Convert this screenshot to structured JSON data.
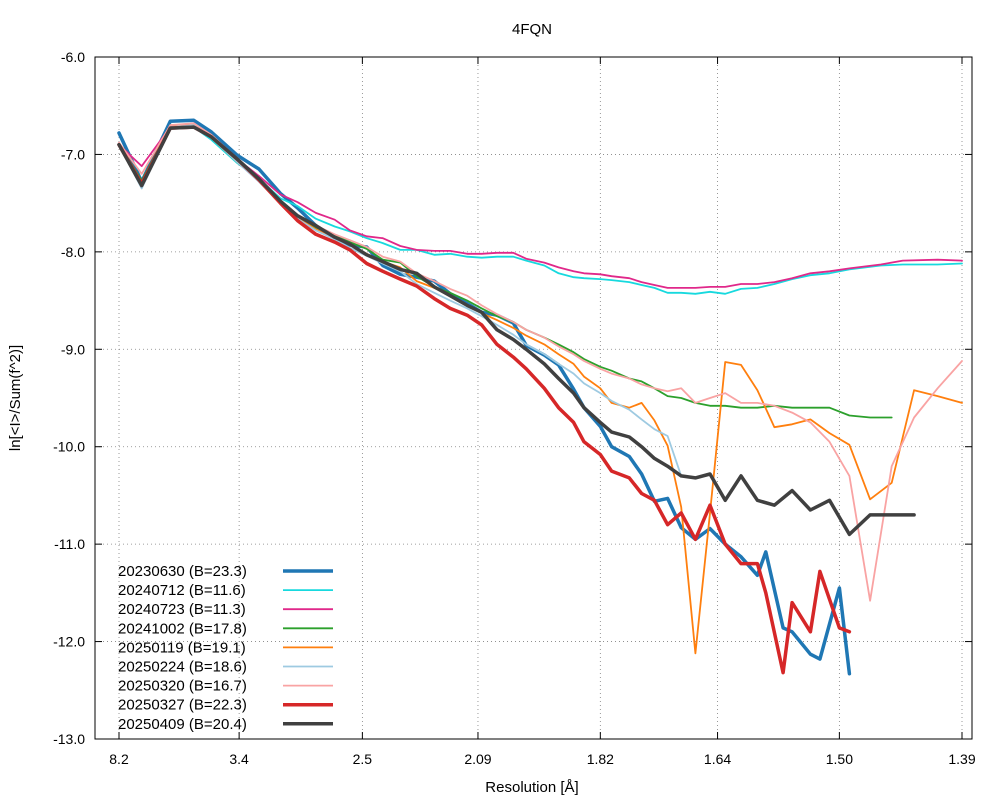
{
  "chart_data": {
    "type": "line",
    "title": "4FQN",
    "xlabel": "Resolution [Å]",
    "ylabel": "ln[<I>/Sum(f^2)]",
    "x_scale": "1/d^2",
    "xticks": [
      8.2,
      3.4,
      2.5,
      2.09,
      1.82,
      1.64,
      1.5,
      1.39
    ],
    "xtick_labels": [
      "8.2",
      "3.4",
      "2.5",
      "2.09",
      "1.82",
      "1.64",
      "1.50",
      "1.39"
    ],
    "xlim": [
      8.2,
      1.39
    ],
    "ylim": [
      -13.0,
      -6.0
    ],
    "yticks": [
      -6.0,
      -7.0,
      -8.0,
      -9.0,
      -10.0,
      -11.0,
      -12.0,
      -13.0
    ],
    "ytick_labels": [
      "-6.0",
      "-7.0",
      "-8.0",
      "-9.0",
      "-10.0",
      "-11.0",
      "-12.0",
      "-13.0"
    ],
    "grid": true,
    "legend_position": "bottom-left",
    "series": [
      {
        "name": "20230630 (B=23.3)",
        "color": "#1f77b4",
        "width": 3.5,
        "x": [
          8.2,
          5.93,
          4.69,
          4.1,
          3.78,
          3.42,
          3.19,
          3.0,
          2.87,
          2.75,
          2.64,
          2.56,
          2.48,
          2.41,
          2.34,
          2.28,
          2.22,
          2.17,
          2.12,
          2.08,
          2.04,
          2.0,
          1.97,
          1.93,
          1.9,
          1.87,
          1.85,
          1.82,
          1.8,
          1.77,
          1.75,
          1.73,
          1.71,
          1.69,
          1.67,
          1.65,
          1.63,
          1.61,
          1.59,
          1.58,
          1.56,
          1.55,
          1.53,
          1.52,
          1.5,
          1.49
        ],
        "y": [
          -6.78,
          -7.28,
          -6.66,
          -6.65,
          -6.77,
          -7.01,
          -7.15,
          -7.4,
          -7.55,
          -7.73,
          -7.86,
          -7.93,
          -7.95,
          -8.14,
          -8.23,
          -8.26,
          -8.3,
          -8.43,
          -8.53,
          -8.62,
          -8.65,
          -8.73,
          -8.96,
          -9.06,
          -9.16,
          -9.41,
          -9.6,
          -9.79,
          -10.0,
          -10.1,
          -10.28,
          -10.56,
          -10.53,
          -10.83,
          -10.95,
          -10.84,
          -11.0,
          -11.13,
          -11.32,
          -11.08,
          -11.86,
          -11.9,
          -12.13,
          -12.18,
          -11.45,
          -12.33
        ]
      },
      {
        "name": "20240712 (B=11.6)",
        "color": "#17d9de",
        "width": 1.8,
        "x": [
          8.2,
          5.93,
          4.69,
          4.1,
          3.78,
          3.42,
          3.19,
          3.0,
          2.87,
          2.75,
          2.64,
          2.56,
          2.48,
          2.41,
          2.34,
          2.28,
          2.22,
          2.17,
          2.12,
          2.08,
          2.04,
          2.0,
          1.97,
          1.93,
          1.9,
          1.87,
          1.85,
          1.82,
          1.8,
          1.77,
          1.75,
          1.73,
          1.71,
          1.69,
          1.67,
          1.65,
          1.63,
          1.61,
          1.59,
          1.57,
          1.55,
          1.53,
          1.51,
          1.49,
          1.46,
          1.44,
          1.41,
          1.39
        ],
        "y": [
          -6.89,
          -7.33,
          -6.71,
          -6.72,
          -6.85,
          -7.09,
          -7.25,
          -7.45,
          -7.53,
          -7.66,
          -7.74,
          -7.79,
          -7.86,
          -7.91,
          -7.98,
          -7.98,
          -8.03,
          -8.02,
          -8.05,
          -8.06,
          -8.05,
          -8.05,
          -8.09,
          -8.14,
          -8.22,
          -8.26,
          -8.27,
          -8.28,
          -8.29,
          -8.31,
          -8.34,
          -8.37,
          -8.42,
          -8.42,
          -8.43,
          -8.41,
          -8.43,
          -8.38,
          -8.37,
          -8.33,
          -8.28,
          -8.24,
          -8.22,
          -8.18,
          -8.14,
          -8.13,
          -8.13,
          -8.12
        ]
      },
      {
        "name": "20240723 (B=11.3)",
        "color": "#e0288a",
        "width": 1.8,
        "x": [
          8.2,
          5.93,
          4.69,
          4.1,
          3.78,
          3.42,
          3.19,
          3.0,
          2.87,
          2.75,
          2.64,
          2.56,
          2.48,
          2.41,
          2.34,
          2.28,
          2.22,
          2.17,
          2.12,
          2.08,
          2.04,
          2.0,
          1.97,
          1.93,
          1.9,
          1.87,
          1.85,
          1.82,
          1.8,
          1.77,
          1.75,
          1.73,
          1.71,
          1.69,
          1.67,
          1.65,
          1.63,
          1.61,
          1.59,
          1.57,
          1.55,
          1.53,
          1.51,
          1.49,
          1.46,
          1.44,
          1.41,
          1.39
        ],
        "y": [
          -6.9,
          -7.12,
          -6.72,
          -6.68,
          -6.83,
          -7.05,
          -7.22,
          -7.41,
          -7.49,
          -7.6,
          -7.67,
          -7.78,
          -7.84,
          -7.86,
          -7.94,
          -7.98,
          -7.99,
          -7.99,
          -8.02,
          -8.02,
          -8.01,
          -8.01,
          -8.07,
          -8.11,
          -8.16,
          -8.2,
          -8.22,
          -8.23,
          -8.25,
          -8.27,
          -8.31,
          -8.34,
          -8.37,
          -8.37,
          -8.37,
          -8.36,
          -8.36,
          -8.33,
          -8.33,
          -8.31,
          -8.27,
          -8.22,
          -8.2,
          -8.17,
          -8.13,
          -8.09,
          -8.08,
          -8.09
        ]
      },
      {
        "name": "20241002 (B=17.8)",
        "color": "#2ca02c",
        "width": 1.8,
        "x": [
          8.2,
          5.93,
          4.69,
          4.1,
          3.78,
          3.42,
          3.19,
          3.0,
          2.87,
          2.75,
          2.64,
          2.56,
          2.48,
          2.41,
          2.34,
          2.28,
          2.22,
          2.17,
          2.12,
          2.08,
          2.04,
          2.0,
          1.97,
          1.93,
          1.9,
          1.87,
          1.85,
          1.82,
          1.8,
          1.77,
          1.75,
          1.73,
          1.71,
          1.69,
          1.67,
          1.65,
          1.63,
          1.61,
          1.59,
          1.57,
          1.55,
          1.53,
          1.51,
          1.49,
          1.47,
          1.45
        ],
        "y": [
          -6.89,
          -7.27,
          -6.71,
          -6.69,
          -6.82,
          -7.08,
          -7.27,
          -7.48,
          -7.63,
          -7.75,
          -7.83,
          -7.9,
          -7.97,
          -8.08,
          -8.11,
          -8.25,
          -8.36,
          -8.42,
          -8.5,
          -8.58,
          -8.66,
          -8.72,
          -8.8,
          -8.88,
          -8.95,
          -9.03,
          -9.1,
          -9.18,
          -9.22,
          -9.3,
          -9.33,
          -9.4,
          -9.48,
          -9.5,
          -9.55,
          -9.58,
          -9.58,
          -9.6,
          -9.6,
          -9.58,
          -9.6,
          -9.6,
          -9.6,
          -9.68,
          -9.7,
          -9.7
        ]
      },
      {
        "name": "20250119 (B=19.1)",
        "color": "#ff7f0e",
        "width": 1.8,
        "x": [
          8.2,
          5.93,
          4.69,
          4.1,
          3.78,
          3.42,
          3.19,
          3.0,
          2.87,
          2.75,
          2.64,
          2.56,
          2.48,
          2.41,
          2.34,
          2.28,
          2.22,
          2.17,
          2.12,
          2.08,
          2.04,
          2.0,
          1.97,
          1.93,
          1.9,
          1.87,
          1.85,
          1.82,
          1.8,
          1.77,
          1.75,
          1.73,
          1.71,
          1.69,
          1.67,
          1.65,
          1.63,
          1.61,
          1.59,
          1.57,
          1.55,
          1.53,
          1.51,
          1.49,
          1.47,
          1.45,
          1.43,
          1.41,
          1.39
        ],
        "y": [
          -6.9,
          -7.3,
          -6.7,
          -6.7,
          -6.83,
          -7.08,
          -7.27,
          -7.5,
          -7.65,
          -7.77,
          -7.85,
          -7.93,
          -8.02,
          -8.1,
          -8.16,
          -8.3,
          -8.37,
          -8.45,
          -8.55,
          -8.63,
          -8.7,
          -8.78,
          -8.86,
          -8.95,
          -9.05,
          -9.15,
          -9.28,
          -9.4,
          -9.55,
          -9.6,
          -9.55,
          -9.73,
          -9.99,
          -10.62,
          -12.12,
          -10.68,
          -9.13,
          -9.16,
          -9.42,
          -9.8,
          -9.77,
          -9.72,
          -9.86,
          -9.98,
          -10.54,
          -10.37,
          -9.42,
          -9.48,
          -9.55
        ]
      },
      {
        "name": "20250224 (B=18.6)",
        "color": "#9ecae1",
        "width": 1.8,
        "x": [
          8.2,
          5.93,
          4.69,
          4.1,
          3.78,
          3.42,
          3.19,
          3.0,
          2.87,
          2.75,
          2.64,
          2.56,
          2.48,
          2.41,
          2.34,
          2.28,
          2.22,
          2.17,
          2.12,
          2.08,
          2.04,
          2.0,
          1.97,
          1.93,
          1.9,
          1.87,
          1.85,
          1.82,
          1.8,
          1.77,
          1.75,
          1.73,
          1.71,
          1.69
        ],
        "y": [
          -6.9,
          -7.35,
          -6.72,
          -6.7,
          -6.83,
          -7.08,
          -7.28,
          -7.5,
          -7.66,
          -7.78,
          -7.87,
          -7.96,
          -8.04,
          -8.12,
          -8.2,
          -8.33,
          -8.42,
          -8.5,
          -8.58,
          -8.66,
          -8.75,
          -8.85,
          -8.95,
          -9.05,
          -9.15,
          -9.25,
          -9.35,
          -9.45,
          -9.53,
          -9.62,
          -9.72,
          -9.82,
          -9.89,
          -10.3
        ]
      },
      {
        "name": "20250320 (B=16.7)",
        "color": "#f9a3a3",
        "width": 1.8,
        "x": [
          8.2,
          5.93,
          4.69,
          4.1,
          3.78,
          3.42,
          3.19,
          3.0,
          2.87,
          2.75,
          2.64,
          2.56,
          2.48,
          2.41,
          2.34,
          2.28,
          2.22,
          2.17,
          2.12,
          2.08,
          2.04,
          2.0,
          1.97,
          1.93,
          1.9,
          1.87,
          1.85,
          1.82,
          1.8,
          1.77,
          1.75,
          1.73,
          1.71,
          1.69,
          1.67,
          1.65,
          1.63,
          1.61,
          1.59,
          1.57,
          1.55,
          1.53,
          1.51,
          1.49,
          1.47,
          1.45,
          1.43,
          1.41,
          1.39
        ],
        "y": [
          -6.88,
          -7.2,
          -6.7,
          -6.68,
          -6.8,
          -7.05,
          -7.26,
          -7.48,
          -7.62,
          -7.73,
          -7.82,
          -7.88,
          -7.95,
          -8.05,
          -8.1,
          -8.22,
          -8.3,
          -8.38,
          -8.45,
          -8.55,
          -8.64,
          -8.72,
          -8.8,
          -8.88,
          -8.97,
          -9.05,
          -9.12,
          -9.2,
          -9.25,
          -9.3,
          -9.36,
          -9.4,
          -9.43,
          -9.4,
          -9.55,
          -9.5,
          -9.45,
          -9.55,
          -9.55,
          -9.58,
          -9.65,
          -9.75,
          -9.95,
          -10.3,
          -11.58,
          -10.2,
          -9.7,
          -9.4,
          -9.12
        ]
      },
      {
        "name": "20250327 (B=22.3)",
        "color": "#d62728",
        "width": 3.5,
        "x": [
          8.2,
          5.93,
          4.69,
          4.1,
          3.78,
          3.42,
          3.19,
          3.0,
          2.87,
          2.75,
          2.64,
          2.56,
          2.48,
          2.41,
          2.34,
          2.28,
          2.22,
          2.17,
          2.12,
          2.08,
          2.04,
          2.0,
          1.97,
          1.93,
          1.9,
          1.87,
          1.85,
          1.82,
          1.8,
          1.77,
          1.75,
          1.73,
          1.71,
          1.69,
          1.67,
          1.65,
          1.63,
          1.61,
          1.59,
          1.58,
          1.56,
          1.55,
          1.53,
          1.52,
          1.5,
          1.49
        ],
        "y": [
          -6.9,
          -7.3,
          -6.73,
          -6.72,
          -6.82,
          -7.05,
          -7.26,
          -7.5,
          -7.68,
          -7.82,
          -7.9,
          -7.98,
          -8.12,
          -8.2,
          -8.28,
          -8.35,
          -8.48,
          -8.58,
          -8.65,
          -8.75,
          -8.95,
          -9.08,
          -9.2,
          -9.4,
          -9.6,
          -9.75,
          -9.95,
          -10.08,
          -10.25,
          -10.32,
          -10.48,
          -10.55,
          -10.8,
          -10.68,
          -10.95,
          -10.6,
          -11.0,
          -11.2,
          -11.2,
          -11.5,
          -12.32,
          -11.6,
          -11.9,
          -11.28,
          -11.86,
          -11.9
        ]
      },
      {
        "name": "20250409 (B=20.4)",
        "color": "#404040",
        "width": 3.5,
        "x": [
          8.2,
          5.93,
          4.69,
          4.1,
          3.78,
          3.42,
          3.19,
          3.0,
          2.87,
          2.75,
          2.64,
          2.56,
          2.48,
          2.41,
          2.34,
          2.28,
          2.22,
          2.17,
          2.12,
          2.08,
          2.04,
          2.0,
          1.97,
          1.93,
          1.9,
          1.87,
          1.85,
          1.82,
          1.8,
          1.77,
          1.75,
          1.73,
          1.71,
          1.69,
          1.67,
          1.65,
          1.63,
          1.61,
          1.59,
          1.57,
          1.55,
          1.53,
          1.51,
          1.49,
          1.47,
          1.45,
          1.43
        ],
        "y": [
          -6.9,
          -7.32,
          -6.73,
          -6.72,
          -6.82,
          -7.05,
          -7.25,
          -7.48,
          -7.63,
          -7.73,
          -7.85,
          -7.92,
          -8.03,
          -8.1,
          -8.18,
          -8.22,
          -8.36,
          -8.45,
          -8.55,
          -8.62,
          -8.8,
          -8.9,
          -9.0,
          -9.15,
          -9.3,
          -9.45,
          -9.6,
          -9.75,
          -9.85,
          -9.9,
          -10.0,
          -10.12,
          -10.2,
          -10.3,
          -10.32,
          -10.28,
          -10.55,
          -10.3,
          -10.55,
          -10.6,
          -10.45,
          -10.65,
          -10.55,
          -10.9,
          -10.7,
          -10.7,
          -10.7
        ]
      }
    ]
  }
}
